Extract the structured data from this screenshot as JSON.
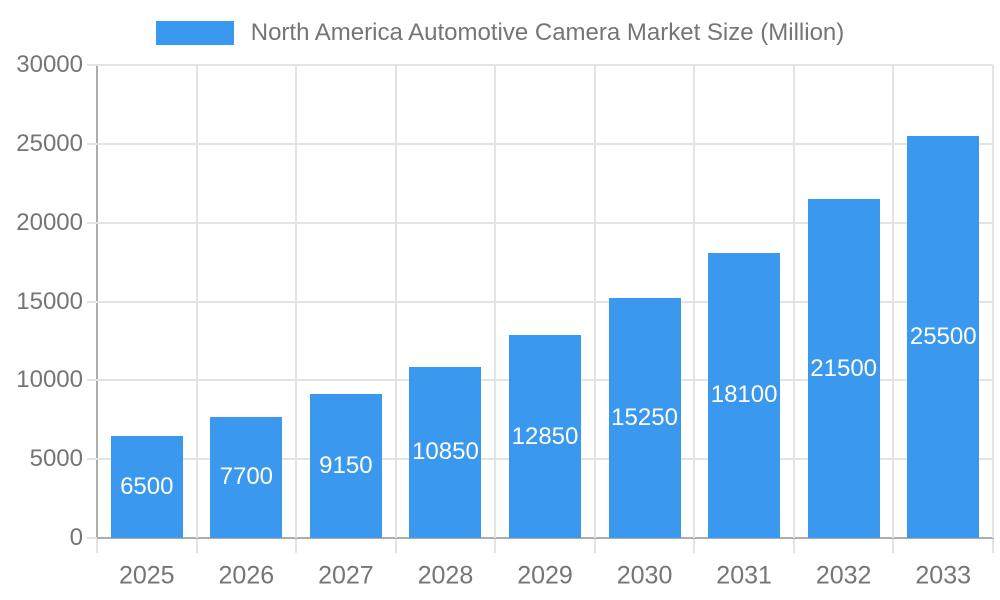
{
  "colors": {
    "background": "#FFFFFF",
    "bar": "#3A99EE",
    "grid": "#E3E3E3",
    "axis": "#ADADAD",
    "label": "#757575",
    "value_label": "#FFFFFF"
  },
  "legend": {
    "label": "North America Automotive Camera Market Size (Million)"
  },
  "chart_data": {
    "type": "bar",
    "title": "North America Automotive Camera Market Size (Million)",
    "categories": [
      "2025",
      "2026",
      "2027",
      "2028",
      "2029",
      "2030",
      "2031",
      "2032",
      "2033"
    ],
    "values": [
      6500,
      7700,
      9150,
      10850,
      12850,
      15250,
      18100,
      21500,
      25500
    ],
    "series": [
      {
        "name": "North America Automotive Camera Market Size (Million)",
        "values": [
          6500,
          7700,
          9150,
          10850,
          12850,
          15250,
          18100,
          21500,
          25500
        ]
      }
    ],
    "xlabel": "",
    "ylabel": "",
    "ylim": [
      0,
      30000
    ],
    "yticks": [
      0,
      5000,
      10000,
      15000,
      20000,
      25000,
      30000
    ],
    "grid": true,
    "legend_position": "top",
    "value_label_position": "inside-center"
  }
}
